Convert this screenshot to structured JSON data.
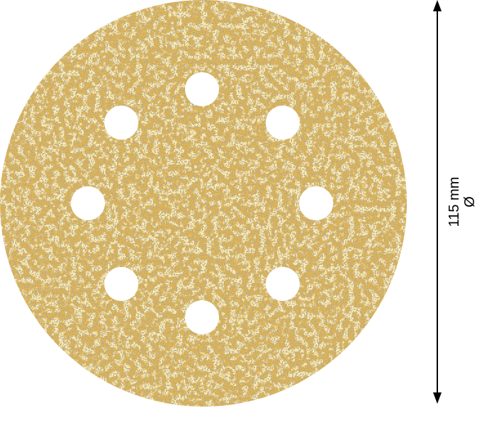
{
  "product": {
    "name": "sanding-disc",
    "hole_count": 8,
    "colors": {
      "abrasive": "#e4b54a",
      "grit": "#7a6a50",
      "background": "#ffffff"
    }
  },
  "dimension": {
    "value": "115 mm",
    "symbol": "Ø"
  }
}
